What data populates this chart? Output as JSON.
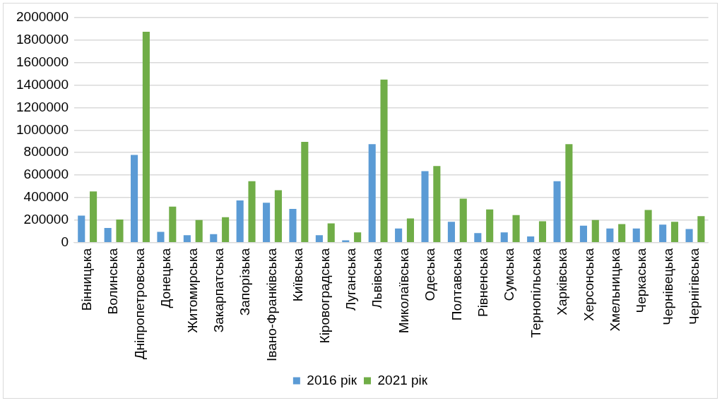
{
  "chart_data": {
    "type": "bar",
    "categories": [
      "Вінницька",
      "Волинська",
      "Дніпропетровська",
      "Донецька",
      "Житомирська",
      "Закарпатська",
      "Запорізька",
      "Івано-Франківська",
      "Київська",
      "Кіровоградська",
      "Луганська",
      "Львівська",
      "Миколаївська",
      "Одеська",
      "Полтавська",
      "Рівненська",
      "Сумська",
      "Тернопільська",
      "Харківська",
      "Херсонська",
      "Хмельницька",
      "Черкаська",
      "Чернівецька",
      "Чернігівська"
    ],
    "series": [
      {
        "name": "2016 рік",
        "color": "#5b9bd5",
        "values": [
          240000,
          130000,
          780000,
          95000,
          65000,
          75000,
          375000,
          355000,
          300000,
          65000,
          20000,
          875000,
          125000,
          635000,
          185000,
          85000,
          90000,
          55000,
          545000,
          150000,
          125000,
          125000,
          160000,
          120000
        ]
      },
      {
        "name": "2021 рік",
        "color": "#70ad47",
        "values": [
          455000,
          205000,
          1875000,
          320000,
          200000,
          225000,
          545000,
          465000,
          895000,
          170000,
          90000,
          1450000,
          215000,
          680000,
          390000,
          295000,
          245000,
          190000,
          875000,
          200000,
          165000,
          290000,
          185000,
          235000
        ]
      }
    ],
    "ylim": [
      0,
      2000000
    ],
    "yticks": [
      0,
      200000,
      400000,
      600000,
      800000,
      1000000,
      1200000,
      1400000,
      1600000,
      1800000,
      2000000
    ],
    "grid": "y",
    "legend": "bottom"
  }
}
